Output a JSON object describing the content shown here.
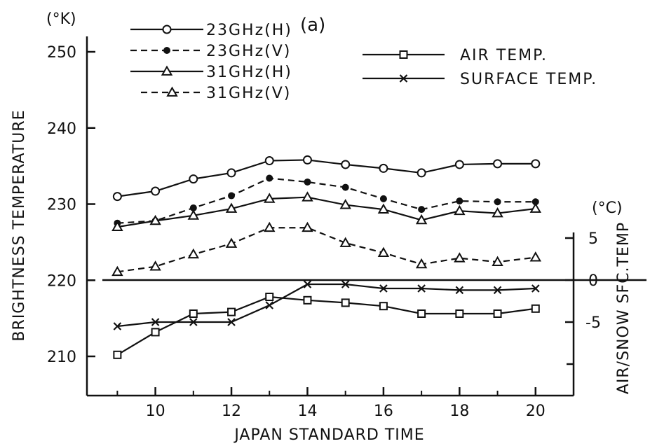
{
  "chart_data": {
    "type": "line",
    "panel_label": "(a)",
    "xlabel": "JAPAN STANDARD TIME",
    "ylabel": "BRIGHTNESS TEMPERATURE",
    "y_unit": "(°K)",
    "y2label": "AIR/SNOW SFC.TEMP",
    "y2_unit": "(°C)",
    "xlim": [
      8.2,
      21
    ],
    "ylim": [
      205,
      252
    ],
    "y2lim": [
      -15,
      6
    ],
    "x_ticks": [
      10,
      12,
      14,
      16,
      18,
      20
    ],
    "x_minor_ticks": [
      9,
      11,
      13,
      15,
      17,
      19
    ],
    "y_ticks": [
      210,
      220,
      230,
      240,
      250
    ],
    "y2_ticks": [
      5,
      0,
      -5
    ],
    "y2_tick_labels": [
      "5",
      "0",
      "-5"
    ],
    "y2_minor_ticks": [
      -10
    ],
    "x": [
      9,
      10,
      11,
      12,
      13,
      14,
      15,
      16,
      17,
      18,
      19,
      20
    ],
    "series": [
      {
        "name": "23GHz(H)",
        "axis": "left",
        "marker": "open-circle",
        "dash": "solid",
        "values": [
          231.0,
          231.7,
          233.3,
          234.1,
          235.7,
          235.8,
          235.2,
          234.7,
          234.1,
          235.2,
          235.3,
          235.3
        ]
      },
      {
        "name": "23GHz(V)",
        "axis": "left",
        "marker": "filled-circle",
        "dash": "dashed",
        "values": [
          227.5,
          227.8,
          229.5,
          231.1,
          233.4,
          232.9,
          232.2,
          230.7,
          229.3,
          230.4,
          230.3,
          230.3
        ]
      },
      {
        "name": "31GHz(H)",
        "axis": "left",
        "marker": "open-triangle",
        "dash": "solid",
        "values": [
          227.0,
          227.8,
          228.5,
          229.4,
          230.7,
          230.9,
          229.9,
          229.3,
          227.9,
          229.1,
          228.8,
          229.4
        ]
      },
      {
        "name": "31GHz(V)",
        "axis": "left",
        "marker": "open-triangle",
        "dash": "dashed",
        "values": [
          221.1,
          221.8,
          223.4,
          224.8,
          226.9,
          226.9,
          224.9,
          223.6,
          222.1,
          222.9,
          222.4,
          223.0
        ]
      },
      {
        "name": "AIR TEMP.",
        "axis": "right",
        "marker": "open-square",
        "dash": "solid",
        "values": [
          -8.9,
          -6.2,
          -4.0,
          -3.8,
          -2.0,
          -2.4,
          -2.7,
          -3.1,
          -4.0,
          -4.0,
          -4.0,
          -3.4
        ]
      },
      {
        "name": "SURFACE TEMP.",
        "axis": "right",
        "marker": "x",
        "dash": "solid",
        "values": [
          -5.5,
          -5.0,
          -5.0,
          -5.0,
          -3.0,
          -0.5,
          -0.5,
          -1.0,
          -1.0,
          -1.2,
          -1.2,
          -1.0
        ]
      }
    ],
    "reference_line": {
      "axis": "right",
      "value": 0
    },
    "grid": false,
    "legend_position": "top"
  }
}
